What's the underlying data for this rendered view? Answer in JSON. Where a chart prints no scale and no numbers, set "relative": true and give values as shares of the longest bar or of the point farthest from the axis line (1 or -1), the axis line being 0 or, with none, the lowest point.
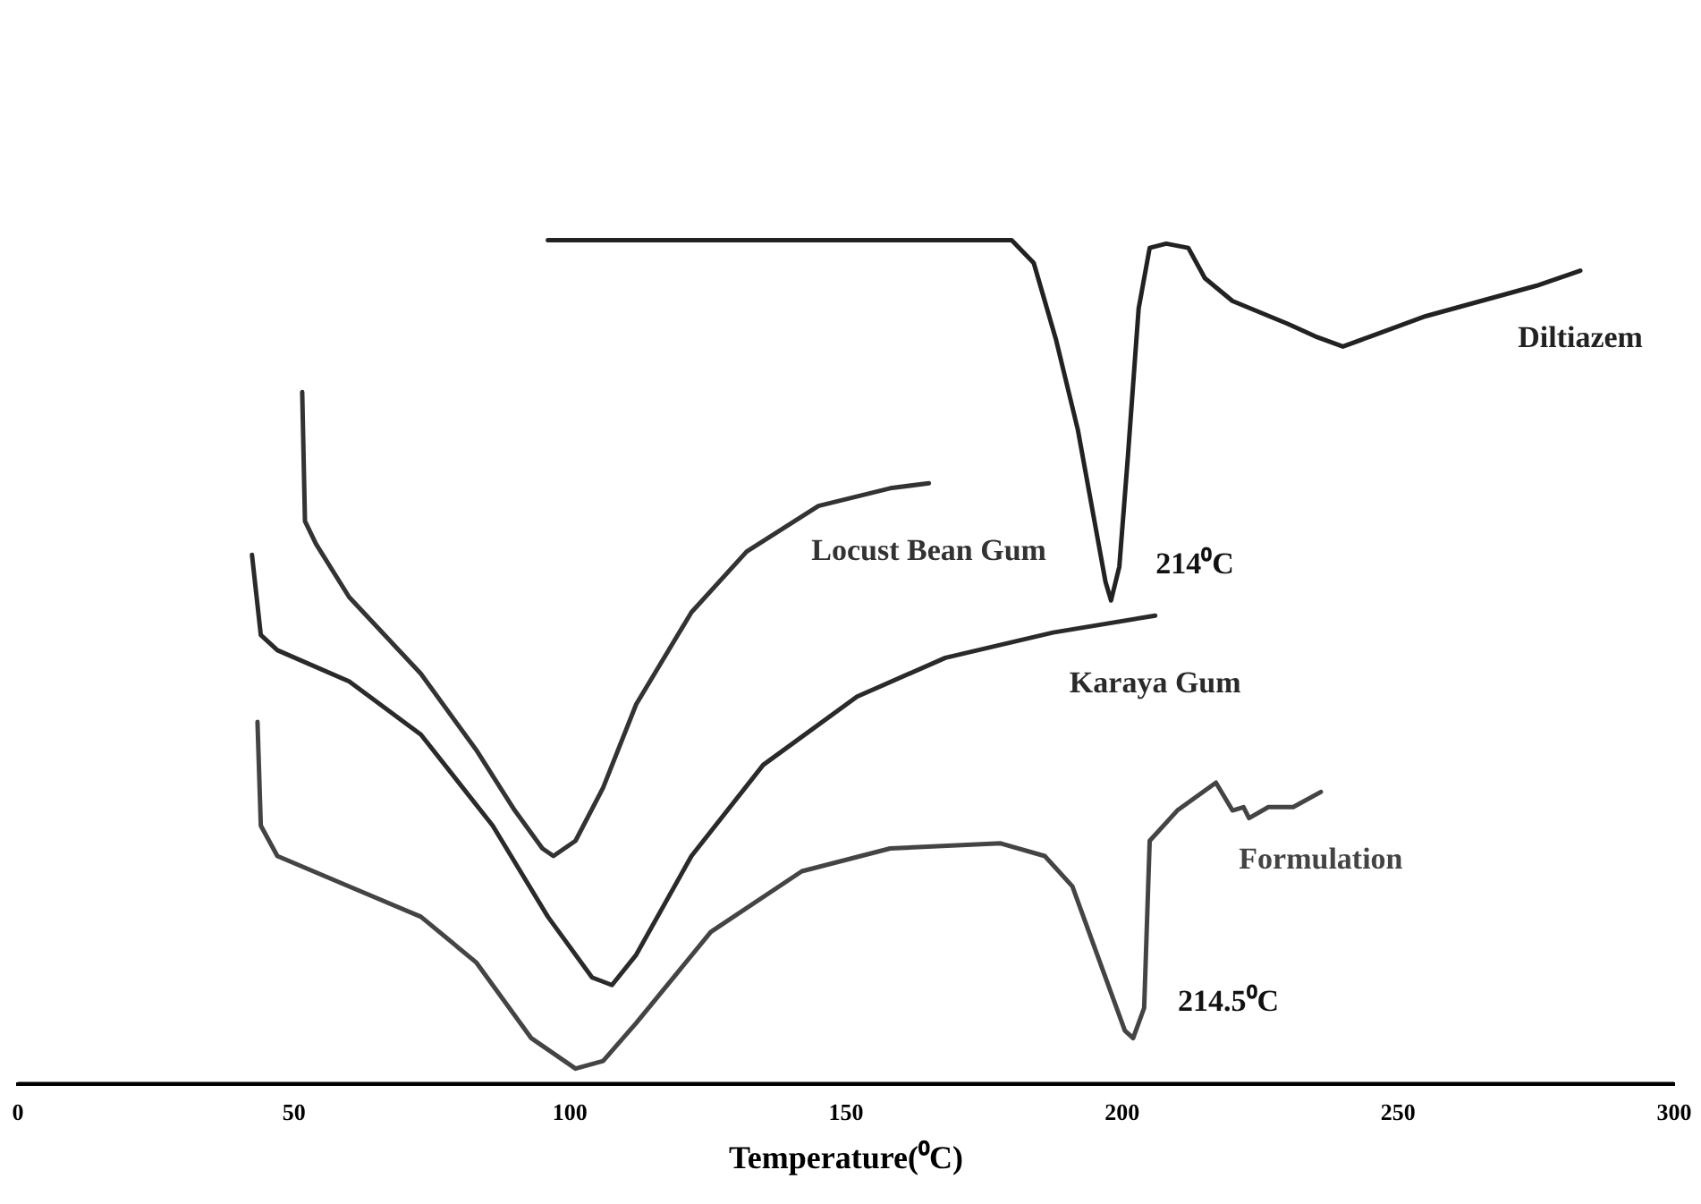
{
  "chart_data": {
    "type": "line",
    "relative": true,
    "xlabel": "Temperature(⁰C)",
    "xlim": [
      0,
      300
    ],
    "xticks": [
      0,
      50,
      100,
      150,
      200,
      250,
      300
    ],
    "tick_labels": "x",
    "grid": false,
    "legend": false,
    "marker": "none",
    "line_style": "solid",
    "series": [
      {
        "name": "Diltiazem",
        "color": "#222222",
        "x": [
          96,
          180,
          184,
          188,
          192,
          195,
          197,
          198,
          199.5,
          201,
          203,
          205,
          208,
          212,
          215,
          220,
          230,
          235,
          240,
          245,
          255,
          265,
          275,
          283
        ],
        "values": [
          1.0,
          1.0,
          0.973,
          0.883,
          0.775,
          0.667,
          0.595,
          0.573,
          0.613,
          0.739,
          0.919,
          0.991,
          0.996,
          0.991,
          0.955,
          0.928,
          0.901,
          0.886,
          0.874,
          0.886,
          0.91,
          0.928,
          0.946,
          0.964
        ]
      },
      {
        "name": "Locust Bean Gum",
        "color": "#333333",
        "x": [
          51.5,
          52,
          54,
          60,
          73,
          83,
          90,
          95,
          97,
          101,
          106,
          112,
          122,
          132,
          145,
          158,
          165
        ],
        "values": [
          0.82,
          0.667,
          0.64,
          0.577,
          0.486,
          0.396,
          0.324,
          0.279,
          0.27,
          0.288,
          0.351,
          0.45,
          0.559,
          0.631,
          0.685,
          0.706,
          0.712
        ]
      },
      {
        "name": "Karaya Gum",
        "color": "#2a2a2a",
        "x": [
          42.4,
          44,
          47,
          60,
          73,
          86,
          96,
          104,
          107.6,
          112,
          122,
          135,
          152,
          168,
          187.5,
          206
        ],
        "values": [
          0.627,
          0.532,
          0.514,
          0.477,
          0.414,
          0.306,
          0.198,
          0.126,
          0.117,
          0.153,
          0.27,
          0.378,
          0.459,
          0.505,
          0.535,
          0.555
        ]
      },
      {
        "name": "Formulation",
        "color": "#444444",
        "x": [
          43.4,
          44,
          47,
          60,
          73,
          83,
          93,
          101,
          106,
          112,
          125.5,
          142,
          158,
          178,
          186,
          191,
          196,
          200.5,
          202,
          204,
          205,
          210,
          217,
          220,
          222,
          223,
          226.5,
          231,
          236
        ],
        "values": [
          0.429,
          0.306,
          0.27,
          0.234,
          0.198,
          0.144,
          0.054,
          0.018,
          0.027,
          0.072,
          0.18,
          0.252,
          0.279,
          0.285,
          0.27,
          0.234,
          0.144,
          0.063,
          0.054,
          0.09,
          0.288,
          0.324,
          0.357,
          0.324,
          0.328,
          0.315,
          0.328,
          0.328,
          0.346
        ]
      }
    ],
    "annotations": [
      {
        "text": "214⁰C",
        "x": 198,
        "y": 0.573
      },
      {
        "text": "214.5⁰C",
        "x": 202,
        "y": 0.054
      }
    ]
  }
}
